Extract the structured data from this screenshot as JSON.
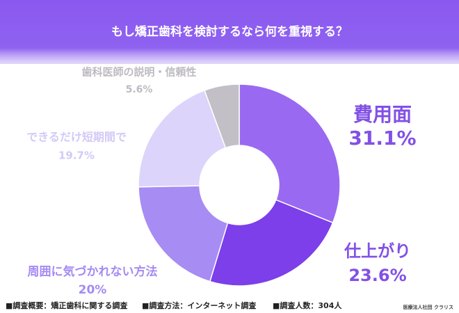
{
  "chart_data": {
    "type": "donut",
    "title": "もし矯正歯科を検討するなら何を重視する？",
    "categories": [
      "費用面",
      "仕上がり",
      "周囲に気づかれない方法",
      "できるだけ短期間で",
      "歯科医師の説明・信頼性"
    ],
    "values": [
      31.1,
      23.6,
      20,
      19.7,
      5.6
    ],
    "value_labels": [
      "31.1%",
      "23.6%",
      "20%",
      "19.7%",
      "5.6%"
    ],
    "colors": [
      "#9a69f2",
      "#7c3fe9",
      "#a78cf3",
      "#dcd4fa",
      "#c2bfc6"
    ]
  },
  "footer": {
    "items": [
      "■調査概要：矯正歯科に関する調査",
      "■調査方法：インターネット調査",
      "■調査人数：304人"
    ],
    "credit": "医療法人社団 クラリス"
  }
}
